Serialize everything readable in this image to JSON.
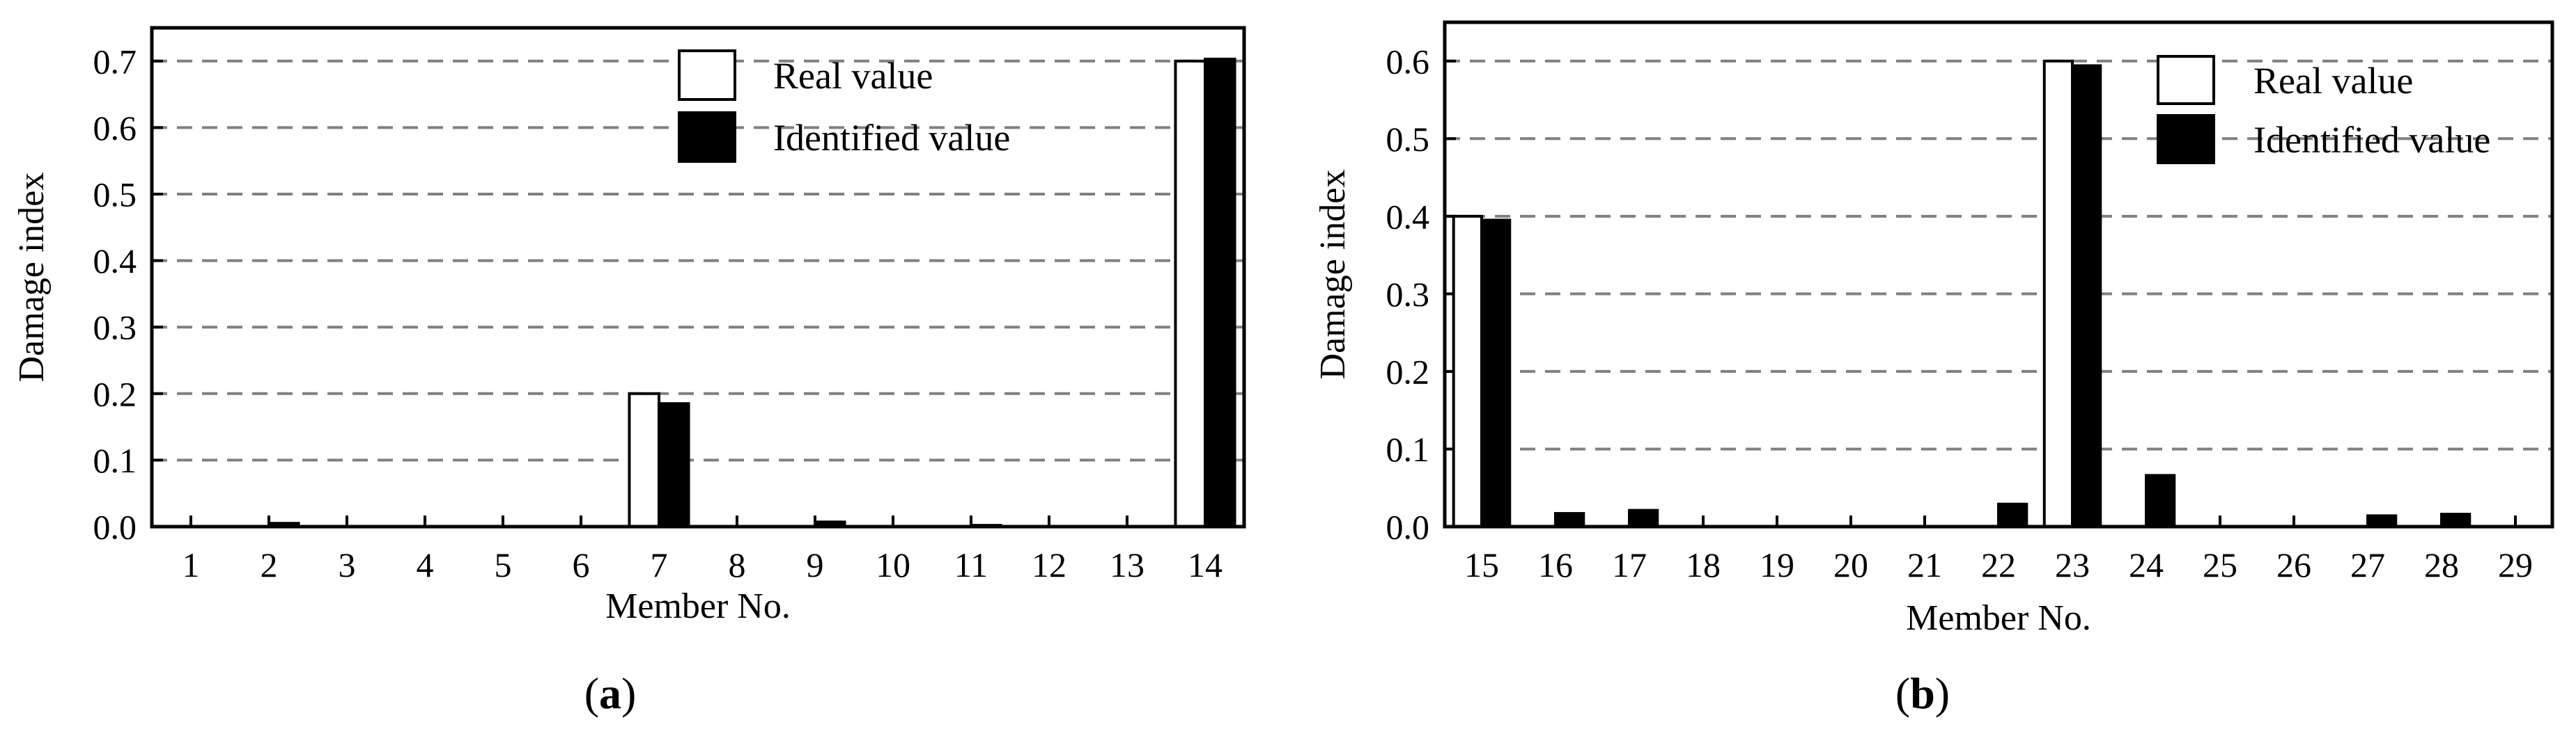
{
  "chart_data": [
    {
      "type": "bar",
      "panel_label": "a",
      "categories": [
        "1",
        "2",
        "3",
        "4",
        "5",
        "6",
        "7",
        "8",
        "9",
        "10",
        "11",
        "12",
        "13",
        "14"
      ],
      "series": [
        {
          "name": "Real value",
          "color": "#ffffff",
          "values": [
            0,
            0,
            0,
            0,
            0,
            0,
            0.2,
            0,
            0,
            0,
            0,
            0,
            0,
            0.7
          ]
        },
        {
          "name": "Identified value",
          "color": "#000000",
          "values": [
            0,
            0.005,
            0,
            0,
            0,
            0,
            0.185,
            0,
            0.007,
            0,
            0.002,
            0,
            0,
            0.703
          ]
        }
      ],
      "xlabel": "Member No.",
      "ylabel": "Damage index",
      "ylim": [
        0,
        0.75
      ],
      "yticks": [
        "0.0",
        "0.1",
        "0.2",
        "0.3",
        "0.4",
        "0.5",
        "0.6",
        "0.7"
      ],
      "grid": "horizontal dashed",
      "legend_position": "top-right"
    },
    {
      "type": "bar",
      "panel_label": "b",
      "categories": [
        "15",
        "16",
        "17",
        "18",
        "19",
        "20",
        "21",
        "22",
        "23",
        "24",
        "25",
        "26",
        "27",
        "28",
        "29"
      ],
      "series": [
        {
          "name": "Real value",
          "color": "#ffffff",
          "values": [
            0.4,
            0,
            0,
            0,
            0,
            0,
            0,
            0,
            0.6,
            0,
            0,
            0,
            0,
            0,
            0
          ]
        },
        {
          "name": "Identified value",
          "color": "#000000",
          "values": [
            0.395,
            0.017,
            0.021,
            0,
            0,
            0,
            0,
            0.029,
            0.594,
            0.066,
            0,
            0,
            0.014,
            0.016,
            0
          ]
        }
      ],
      "xlabel": "Member No.",
      "ylabel": "Damage index",
      "ylim": [
        0,
        0.65
      ],
      "yticks": [
        "0.0",
        "0.1",
        "0.2",
        "0.3",
        "0.4",
        "0.5",
        "0.6"
      ],
      "grid": "horizontal dashed",
      "legend_position": "top-right"
    }
  ]
}
